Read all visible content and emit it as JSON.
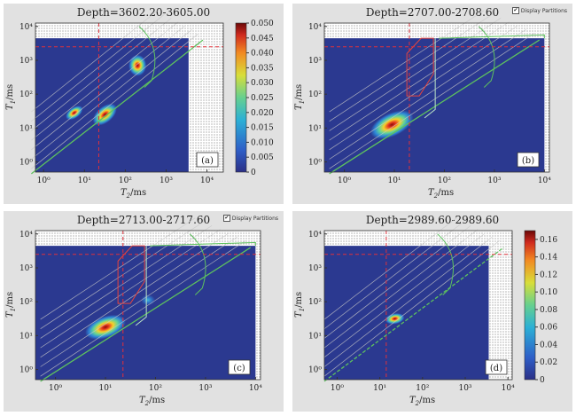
{
  "panels": [
    {
      "id": "a",
      "title": "Depth=3602.20-3605.00",
      "label": "(a)",
      "show_partitions": false,
      "blobs": [
        {
          "x": 1.5,
          "y": 1.4,
          "rx": 16,
          "ry": 9,
          "rot": -40,
          "peak": 0.05
        },
        {
          "x": 2.3,
          "y": 2.85,
          "rx": 10,
          "ry": 12,
          "rot": 0,
          "peak": 0.05
        },
        {
          "x": 0.75,
          "y": 1.45,
          "rx": 11,
          "ry": 6,
          "rot": -35,
          "peak": 0.02
        }
      ],
      "cutoff_t2": 1.35,
      "cutoff_t1": 3.4
    },
    {
      "id": "b",
      "title": "Depth=2707.00-2708.60",
      "label": "(b)",
      "show_partitions": true,
      "checkbox_label": "Display Partitions",
      "blobs": [
        {
          "x": 0.95,
          "y": 1.1,
          "rx": 26,
          "ry": 13,
          "rot": -25,
          "peak": 0.05
        }
      ],
      "cutoff_t2": 1.3,
      "cutoff_t1": 3.4
    },
    {
      "id": "c",
      "title": "Depth=2713.00-2717.60",
      "label": "(c)",
      "show_partitions": true,
      "checkbox_label": "Display Partitions",
      "blobs": [
        {
          "x": 1.0,
          "y": 1.25,
          "rx": 24,
          "ry": 12,
          "rot": -20,
          "peak": 0.05
        },
        {
          "x": 1.85,
          "y": 2.05,
          "rx": 8,
          "ry": 6,
          "rot": 0,
          "peak": 0.012
        }
      ],
      "cutoff_t2": 1.35,
      "cutoff_t1": 3.4
    },
    {
      "id": "d",
      "title": "Depth=2989.60-2989.60",
      "label": "(d)",
      "show_partitions": false,
      "blobs": [
        {
          "x": 1.35,
          "y": 1.5,
          "rx": 11,
          "ry": 6,
          "rot": -10,
          "peak": 0.17
        }
      ],
      "cutoff_t2": 1.15,
      "cutoff_t1": 3.4
    }
  ],
  "axis": {
    "xlabel_base": "T",
    "xlabel_sub": "2",
    "xlabel_unit": "/ms",
    "ylabel_base": "T",
    "ylabel_sub": "1",
    "ylabel_unit": "/ms",
    "xticks": [
      "10⁰",
      "10¹",
      "10²",
      "10³",
      "10⁴"
    ],
    "yticks": [
      "10⁰",
      "10¹",
      "10²",
      "10³",
      "10⁴"
    ]
  },
  "colorbars": [
    {
      "panel": "a",
      "ticks": [
        "0",
        "0.005",
        "0.010",
        "0.015",
        "0.020",
        "0.025",
        "0.030",
        "0.035",
        "0.040",
        "0.045",
        "0.050"
      ]
    },
    {
      "panel": "d",
      "ticks": [
        "0",
        "0.02",
        "0.04",
        "0.06",
        "0.08",
        "0.10",
        "0.12",
        "0.14",
        "0.16"
      ]
    }
  ],
  "colors": {
    "background": "#2b3990",
    "cutoff": "#e0303a",
    "diagonal": "#c8c8c8",
    "green": "#5ec25e",
    "partition_red": "#e8453c"
  }
}
